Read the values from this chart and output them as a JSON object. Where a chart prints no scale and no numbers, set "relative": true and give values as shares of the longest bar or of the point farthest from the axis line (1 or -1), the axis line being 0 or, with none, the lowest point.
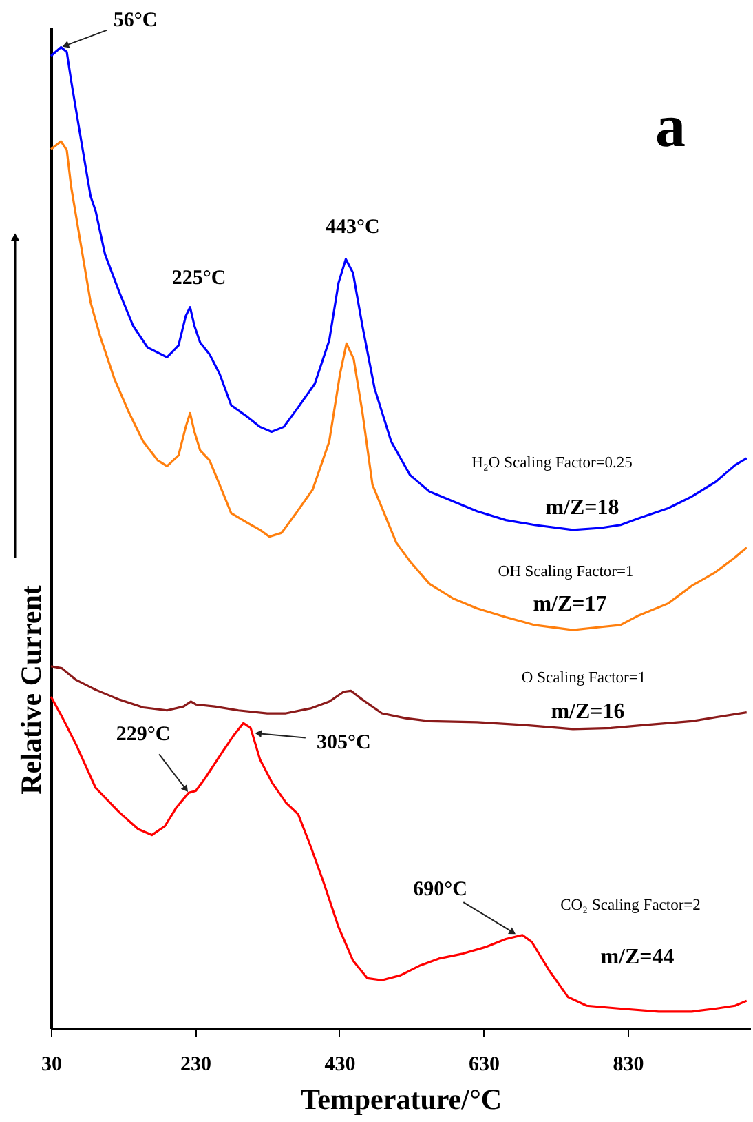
{
  "chart_data": {
    "type": "line",
    "relative": true,
    "xlabel": "Temperature/°C",
    "ylabel": "Relative Current",
    "xlim": [
      30,
      1000
    ],
    "xticks": [
      30,
      230,
      430,
      630,
      830
    ],
    "grid": false,
    "series": [
      {
        "color": "#0000ff",
        "x": [
          30,
          44,
          52,
          58,
          68,
          85,
          92,
          105,
          125,
          144,
          164,
          191,
          207,
          217,
          223,
          229,
          237,
          250,
          264,
          280,
          303,
          320,
          336,
          353,
          373,
          396,
          416,
          429,
          439,
          449,
          462,
          479,
          502,
          528,
          555,
          588,
          621,
          661,
          701,
          754,
          793,
          820,
          846,
          886,
          919,
          952,
          979,
          995
        ],
        "values": [
          0.991,
          1.0,
          0.995,
          0.966,
          0.922,
          0.848,
          0.833,
          0.789,
          0.75,
          0.716,
          0.694,
          0.684,
          0.696,
          0.726,
          0.735,
          0.716,
          0.699,
          0.687,
          0.667,
          0.635,
          0.623,
          0.613,
          0.608,
          0.613,
          0.633,
          0.657,
          0.701,
          0.76,
          0.784,
          0.77,
          0.716,
          0.652,
          0.598,
          0.564,
          0.547,
          0.537,
          0.527,
          0.518,
          0.513,
          0.508,
          0.51,
          0.513,
          0.52,
          0.53,
          0.542,
          0.557,
          0.574,
          0.581
        ]
      },
      {
        "color": "#ff7f0e",
        "x": [
          30,
          44,
          52,
          58,
          68,
          85,
          98,
          118,
          138,
          158,
          178,
          191,
          207,
          217,
          223,
          229,
          237,
          250,
          264,
          280,
          303,
          320,
          333,
          350,
          370,
          393,
          416,
          431,
          440,
          450,
          462,
          476,
          509,
          529,
          555,
          588,
          621,
          661,
          701,
          754,
          793,
          820,
          846,
          886,
          919,
          952,
          979,
          995
        ],
        "values": [
          0.896,
          0.904,
          0.895,
          0.858,
          0.814,
          0.74,
          0.706,
          0.662,
          0.628,
          0.598,
          0.579,
          0.573,
          0.584,
          0.613,
          0.627,
          0.608,
          0.589,
          0.579,
          0.554,
          0.525,
          0.515,
          0.508,
          0.501,
          0.505,
          0.525,
          0.549,
          0.598,
          0.667,
          0.698,
          0.682,
          0.628,
          0.554,
          0.495,
          0.475,
          0.453,
          0.438,
          0.428,
          0.419,
          0.411,
          0.406,
          0.409,
          0.411,
          0.421,
          0.433,
          0.451,
          0.465,
          0.48,
          0.49
        ]
      },
      {
        "color": "#8b1a1a",
        "x": [
          30,
          45,
          65,
          92,
          125,
          158,
          191,
          214,
          224,
          231,
          257,
          290,
          330,
          356,
          390,
          416,
          436,
          446,
          462,
          489,
          522,
          555,
          621,
          687,
          754,
          807,
          853,
          919,
          952,
          995
        ],
        "values": [
          0.369,
          0.367,
          0.355,
          0.345,
          0.335,
          0.327,
          0.324,
          0.328,
          0.333,
          0.33,
          0.328,
          0.324,
          0.321,
          0.321,
          0.326,
          0.333,
          0.343,
          0.344,
          0.335,
          0.321,
          0.316,
          0.313,
          0.312,
          0.309,
          0.305,
          0.306,
          0.309,
          0.313,
          0.317,
          0.322
        ]
      },
      {
        "color": "#ff0000",
        "x": [
          30,
          45,
          65,
          92,
          125,
          151,
          170,
          188,
          204,
          221,
          231,
          244,
          270,
          284,
          297,
          307,
          320,
          337,
          356,
          373,
          390,
          409,
          429,
          449,
          469,
          489,
          515,
          542,
          568,
          601,
          634,
          661,
          684,
          697,
          721,
          747,
          773,
          820,
          873,
          919,
          952,
          979,
          995
        ],
        "values": [
          0.338,
          0.318,
          0.289,
          0.245,
          0.22,
          0.203,
          0.197,
          0.206,
          0.225,
          0.24,
          0.242,
          0.255,
          0.284,
          0.299,
          0.311,
          0.306,
          0.274,
          0.25,
          0.23,
          0.218,
          0.186,
          0.147,
          0.103,
          0.069,
          0.051,
          0.049,
          0.054,
          0.064,
          0.071,
          0.076,
          0.083,
          0.091,
          0.095,
          0.088,
          0.059,
          0.032,
          0.023,
          0.02,
          0.017,
          0.017,
          0.02,
          0.023,
          0.028
        ]
      }
    ],
    "annotations": [
      {
        "text": "56°C",
        "x": 44,
        "y": 1.0
      },
      {
        "text": "225°C",
        "x": 222,
        "y": 0.735
      },
      {
        "text": "443°C",
        "x": 439,
        "y": 0.784
      },
      {
        "text": "229°C",
        "x": 221,
        "y": 0.24
      },
      {
        "text": "305°C",
        "x": 310,
        "y": 0.301
      },
      {
        "text": "690°C",
        "x": 677,
        "y": 0.095
      },
      "H₂O Scaling  Factor=0.25",
      "m/Z=18",
      "OH Scaling  Factor=1",
      "m/Z=17",
      "O Scaling  Factor=1",
      "m/Z=16",
      "CO₂ Scaling  Factor=2",
      "m/Z=44",
      "a"
    ]
  }
}
